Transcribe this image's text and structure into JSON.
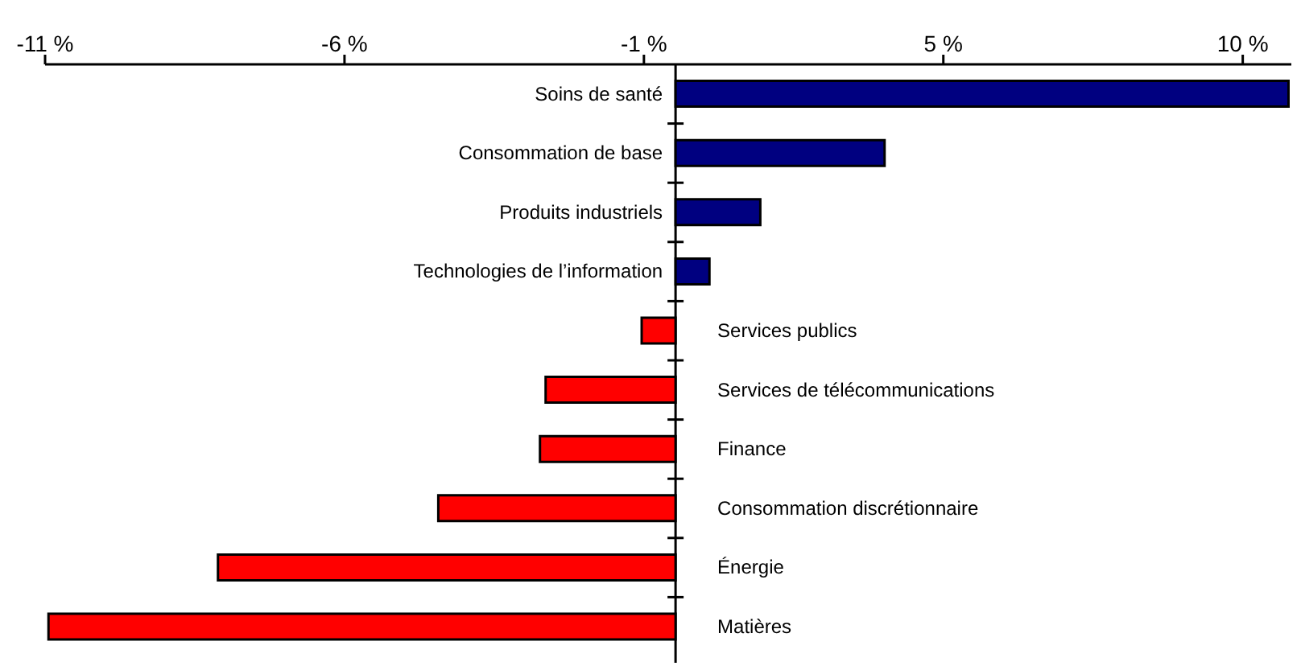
{
  "chart_data": {
    "type": "bar",
    "orientation": "horizontal",
    "categories": [
      "Soins de santé",
      "Consommation de base",
      "Produits industriels",
      "Technologies de l’information",
      "Services publics",
      "Services de télécommunications",
      "Finance",
      "Consommation discrétionnaire",
      "Énergie",
      "Matières"
    ],
    "values": [
      10.85,
      3.7,
      1.5,
      0.6,
      -0.6,
      -2.3,
      -2.4,
      -4.2,
      -8.1,
      -11.1
    ],
    "colors": [
      "#000080",
      "#000080",
      "#000080",
      "#000080",
      "#ff0000",
      "#ff0000",
      "#ff0000",
      "#ff0000",
      "#ff0000",
      "#ff0000"
    ],
    "xlim": [
      -11.16,
      10.9
    ],
    "xticks": [
      {
        "value": -11.16,
        "label": "-11 %"
      },
      {
        "value": -5.86,
        "label": "-6 %"
      },
      {
        "value": -0.56,
        "label": "-1 %"
      },
      {
        "value": 4.74,
        "label": "5 %"
      },
      {
        "value": 10.04,
        "label": "10 %"
      }
    ],
    "tick_labels": "x"
  }
}
